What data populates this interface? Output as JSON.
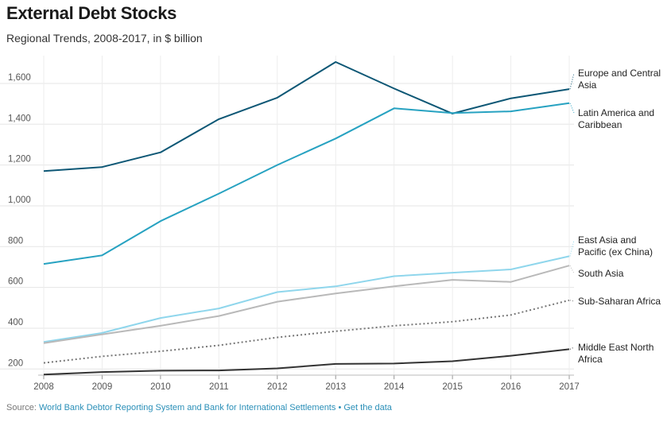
{
  "header": {
    "title": "External Debt Stocks",
    "subtitle": "Regional Trends, 2008-2017, in $ billion"
  },
  "footer": {
    "source_prefix": "Source:",
    "source_text": "World Bank Debtor Reporting System and Bank for International Settlements",
    "separator": "•",
    "get_data": "Get the data"
  },
  "chart_data": {
    "type": "line",
    "title": "External Debt Stocks",
    "subtitle": "Regional Trends, 2008-2017, in $ billion",
    "xlabel": "",
    "ylabel": "",
    "ylim": [
      170,
      1720
    ],
    "grid": true,
    "x": [
      "2008",
      "2009",
      "2010",
      "2011",
      "2012",
      "2013",
      "2014",
      "2015",
      "2016",
      "2017"
    ],
    "y_ticks": [
      200,
      400,
      600,
      800,
      1000,
      1200,
      1400,
      1600
    ],
    "y_tick_labels": [
      "200",
      "400",
      "600",
      "800",
      "1,000",
      "1,200",
      "1,400",
      "1,600"
    ],
    "series": [
      {
        "name": "Europe and Central Asia",
        "label_lines": [
          "Europe and Central",
          "Asia"
        ],
        "color": "#0d5775",
        "dash": "solid",
        "values": [
          1170,
          1190,
          1262,
          1425,
          1530,
          1705,
          1575,
          1452,
          1527,
          1572
        ]
      },
      {
        "name": "Latin America and Caribbean",
        "label_lines": [
          "Latin America and",
          "Caribbean"
        ],
        "color": "#27a2c1",
        "dash": "solid",
        "values": [
          715,
          757,
          925,
          1060,
          1200,
          1330,
          1478,
          1455,
          1463,
          1503
        ]
      },
      {
        "name": "East Asia and Pacific (ex China)",
        "label_lines": [
          "East Asia and",
          "Pacific (ex China)"
        ],
        "color": "#8fd6ec",
        "dash": "solid",
        "values": [
          333,
          377,
          450,
          497,
          577,
          605,
          655,
          672,
          688,
          753
        ]
      },
      {
        "name": "South Asia",
        "label_lines": [
          "South Asia"
        ],
        "color": "#b9b9b9",
        "dash": "solid",
        "values": [
          327,
          370,
          412,
          460,
          530,
          570,
          605,
          637,
          627,
          707
        ]
      },
      {
        "name": "Sub-Saharan Africa",
        "label_lines": [
          "Sub-Saharan Africa"
        ],
        "color": "#777777",
        "dash": "dotted",
        "values": [
          230,
          262,
          287,
          316,
          355,
          385,
          412,
          432,
          465,
          537
        ]
      },
      {
        "name": "Middle East North Africa",
        "label_lines": [
          "Middle East North",
          "Africa"
        ],
        "color": "#333333",
        "dash": "solid",
        "values": [
          173,
          185,
          192,
          193,
          203,
          225,
          227,
          238,
          265,
          297
        ]
      }
    ]
  }
}
